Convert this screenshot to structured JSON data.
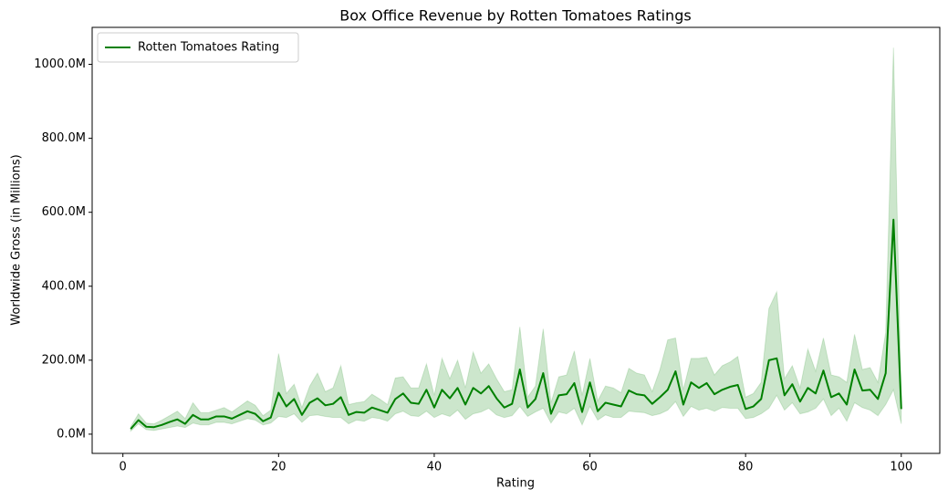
{
  "chart_data": {
    "type": "line",
    "title": "Box Office Revenue by Rotten Tomatoes Ratings",
    "x_label": "Rating",
    "y_label": "Worldwide Gross (in Millions)",
    "x": [
      1,
      2,
      3,
      4,
      5,
      6,
      7,
      8,
      9,
      10,
      11,
      12,
      13,
      14,
      15,
      16,
      17,
      18,
      19,
      20,
      21,
      22,
      23,
      24,
      25,
      26,
      27,
      28,
      29,
      30,
      31,
      32,
      33,
      34,
      35,
      36,
      37,
      38,
      39,
      40,
      41,
      42,
      43,
      44,
      45,
      46,
      47,
      48,
      49,
      50,
      51,
      52,
      53,
      54,
      55,
      56,
      57,
      58,
      59,
      60,
      61,
      62,
      63,
      64,
      65,
      66,
      67,
      68,
      69,
      70,
      71,
      72,
      73,
      74,
      75,
      76,
      77,
      78,
      79,
      80,
      81,
      82,
      83,
      84,
      85,
      86,
      87,
      88,
      89,
      90,
      91,
      92,
      93,
      94,
      95,
      96,
      97,
      98,
      99,
      100
    ],
    "series": [
      {
        "name": "Rotten Tomatoes Rating",
        "color": "#008000",
        "band_color": "#008000",
        "values": [
          14,
          38,
          20,
          19,
          25,
          33,
          40,
          28,
          52,
          40,
          40,
          48,
          48,
          42,
          52,
          62,
          55,
          35,
          45,
          112,
          75,
          95,
          52,
          85,
          97,
          78,
          82,
          100,
          52,
          60,
          58,
          72,
          65,
          58,
          95,
          110,
          85,
          82,
          120,
          72,
          120,
          97,
          125,
          80,
          125,
          110,
          130,
          97,
          72,
          82,
          175,
          72,
          95,
          165,
          55,
          105,
          108,
          138,
          60,
          140,
          62,
          85,
          80,
          75,
          118,
          108,
          105,
          82,
          100,
          120,
          170,
          80,
          140,
          125,
          138,
          108,
          120,
          128,
          133,
          68,
          75,
          95,
          200,
          205,
          105,
          135,
          88,
          125,
          110,
          172,
          100,
          110,
          80,
          175,
          118,
          120,
          95,
          165,
          580,
          68
        ],
        "lower": [
          8,
          28,
          12,
          10,
          14,
          18,
          22,
          18,
          30,
          25,
          25,
          32,
          32,
          28,
          35,
          42,
          38,
          25,
          30,
          48,
          45,
          55,
          32,
          50,
          52,
          48,
          45,
          45,
          28,
          38,
          35,
          45,
          42,
          35,
          55,
          62,
          50,
          48,
          62,
          45,
          55,
          48,
          65,
          40,
          55,
          60,
          70,
          52,
          45,
          50,
          75,
          48,
          60,
          70,
          30,
          60,
          55,
          70,
          25,
          75,
          38,
          52,
          45,
          45,
          62,
          60,
          58,
          50,
          55,
          65,
          88,
          48,
          75,
          65,
          70,
          62,
          72,
          70,
          70,
          42,
          45,
          55,
          70,
          105,
          65,
          85,
          55,
          60,
          70,
          95,
          50,
          70,
          35,
          85,
          72,
          65,
          50,
          80,
          120,
          28
        ],
        "upper": [
          20,
          55,
          30,
          28,
          38,
          50,
          62,
          42,
          85,
          58,
          58,
          65,
          72,
          60,
          75,
          90,
          78,
          50,
          65,
          218,
          110,
          135,
          72,
          130,
          165,
          115,
          125,
          185,
          80,
          85,
          88,
          108,
          95,
          80,
          152,
          155,
          125,
          125,
          190,
          105,
          205,
          150,
          200,
          125,
          222,
          165,
          190,
          150,
          115,
          120,
          290,
          100,
          130,
          285,
          85,
          155,
          160,
          225,
          105,
          205,
          90,
          130,
          125,
          112,
          178,
          165,
          160,
          115,
          175,
          255,
          260,
          120,
          205,
          205,
          208,
          160,
          185,
          195,
          210,
          100,
          110,
          140,
          340,
          385,
          150,
          185,
          125,
          230,
          170,
          260,
          160,
          155,
          140,
          270,
          175,
          180,
          140,
          275,
          1045,
          100
        ]
      }
    ],
    "xlim": [
      -3.95,
      104.95
    ],
    "xticks": [
      0,
      20,
      40,
      60,
      80,
      100
    ],
    "ylim": [
      -52,
      1100
    ],
    "yticks": [
      {
        "value": 0,
        "label": "0.0M"
      },
      {
        "value": 200,
        "label": "200.0M"
      },
      {
        "value": 400,
        "label": "400.0M"
      },
      {
        "value": 600,
        "label": "600.0M"
      },
      {
        "value": 800,
        "label": "800.0M"
      },
      {
        "value": 1000,
        "label": "1000.0M"
      }
    ],
    "legend": "upper left",
    "grid": false
  }
}
